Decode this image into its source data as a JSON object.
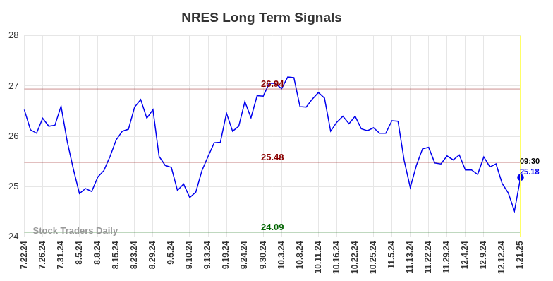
{
  "chart_data": {
    "type": "line",
    "title": "NRES Long Term Signals",
    "categories": [
      "7.22.24",
      null,
      null,
      "7.26.24",
      null,
      null,
      "7.31.24",
      null,
      null,
      "8.5.24",
      null,
      null,
      "8.8.24",
      null,
      null,
      "8.15.24",
      null,
      null,
      "8.23.24",
      null,
      null,
      "8.29.24",
      null,
      null,
      "9.5.24",
      null,
      null,
      "9.10.24",
      null,
      null,
      "9.13.24",
      null,
      null,
      "9.19.24",
      null,
      null,
      "9.24.24",
      null,
      null,
      "9.30.24",
      null,
      null,
      "10.3.24",
      null,
      null,
      "10.8.24",
      null,
      null,
      "10.11.24",
      null,
      null,
      "10.16.24",
      null,
      null,
      "10.22.24",
      null,
      null,
      "10.25.24",
      null,
      null,
      "11.5.24",
      null,
      null,
      "11.13.24",
      null,
      null,
      "11.22.24",
      null,
      null,
      "11.29.24",
      null,
      null,
      "12.4.24",
      null,
      null,
      "12.9.24",
      null,
      null,
      "12.12.24",
      null,
      null,
      "1.21.25"
    ],
    "values": [
      26.53,
      26.13,
      26.06,
      26.36,
      26.2,
      26.22,
      26.6,
      25.9,
      25.35,
      24.86,
      24.96,
      24.9,
      25.19,
      25.32,
      25.6,
      25.93,
      26.1,
      26.14,
      26.58,
      26.73,
      26.36,
      26.53,
      25.6,
      25.42,
      25.38,
      24.92,
      25.05,
      24.78,
      24.89,
      25.32,
      25.6,
      25.87,
      25.88,
      26.46,
      26.1,
      26.2,
      26.69,
      26.37,
      26.81,
      26.8,
      27.06,
      27.05,
      26.95,
      27.18,
      27.17,
      26.59,
      26.58,
      26.74,
      26.87,
      26.76,
      26.1,
      26.28,
      26.4,
      26.25,
      26.4,
      26.15,
      26.11,
      26.17,
      26.06,
      26.06,
      26.31,
      26.3,
      25.52,
      24.98,
      25.42,
      25.75,
      25.78,
      25.47,
      25.45,
      25.61,
      25.53,
      25.63,
      25.33,
      25.33,
      25.24,
      25.59,
      25.39,
      25.45,
      25.06,
      24.87,
      24.51,
      25.18
    ],
    "color": "#0000ee",
    "ylim": [
      24,
      28
    ],
    "yticks": [
      24,
      25,
      26,
      27,
      28
    ],
    "grid": true,
    "reference_lines": [
      {
        "value": 26.94,
        "label": "26.94",
        "color": "#8b0000"
      },
      {
        "value": 25.48,
        "label": "25.48",
        "color": "#8b0000"
      },
      {
        "value": 24.09,
        "label": "24.09",
        "color": "#006400"
      }
    ],
    "end_label": {
      "time": "09:30",
      "value": 25.18
    },
    "watermark": "Stock Traders Daily"
  }
}
